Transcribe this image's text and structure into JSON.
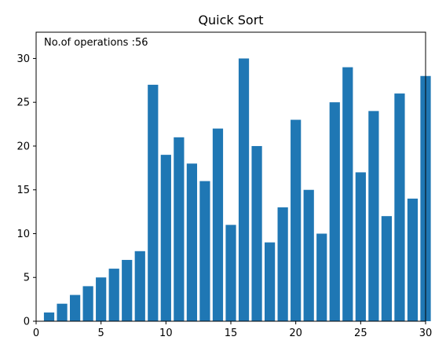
{
  "chart_data": {
    "type": "bar",
    "title": "Quick Sort",
    "annotation": "No.of operations :56",
    "xlabel": "",
    "ylabel": "",
    "x": [
      1,
      2,
      3,
      4,
      5,
      6,
      7,
      8,
      9,
      10,
      11,
      12,
      13,
      14,
      15,
      16,
      17,
      18,
      19,
      20,
      21,
      22,
      23,
      24,
      25,
      26,
      27,
      28,
      29,
      30
    ],
    "values": [
      1,
      2,
      3,
      4,
      5,
      6,
      7,
      8,
      27,
      19,
      21,
      18,
      16,
      22,
      11,
      30,
      20,
      9,
      13,
      23,
      15,
      10,
      25,
      29,
      17,
      24,
      12,
      26,
      14,
      28
    ],
    "xlim": [
      0,
      30
    ],
    "ylim": [
      0,
      33
    ],
    "xticks": [
      0,
      5,
      10,
      15,
      20,
      25,
      30
    ],
    "yticks": [
      0,
      5,
      10,
      15,
      20,
      25,
      30
    ],
    "bar_color": "#1f77b4",
    "grid": false,
    "legend": "none"
  }
}
